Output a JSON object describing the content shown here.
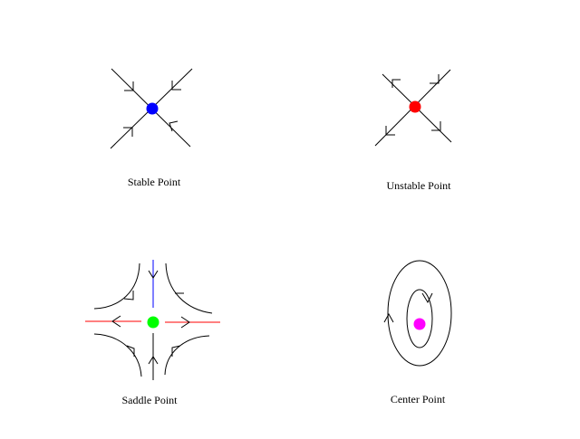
{
  "panels": {
    "stable": {
      "label": "Stable Point",
      "dot_color": "#0000ff"
    },
    "unstable": {
      "label": "Unstable Point",
      "dot_color": "#ff0000"
    },
    "saddle": {
      "label": "Saddle Point",
      "dot_color": "#00ff00",
      "stable_axis_color": "#0000ff",
      "unstable_axis_color": "#ff0000"
    },
    "center": {
      "label": "Center Point",
      "dot_color": "#ff00ff"
    }
  }
}
